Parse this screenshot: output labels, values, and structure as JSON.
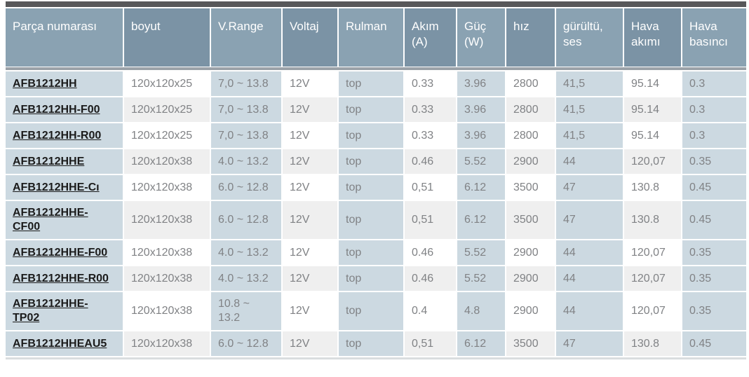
{
  "table": {
    "columns": [
      {
        "key": "part",
        "label": "Parça numarası"
      },
      {
        "key": "size",
        "label": "boyut"
      },
      {
        "key": "vrange",
        "label": "V.Range"
      },
      {
        "key": "voltage",
        "label": "Voltaj"
      },
      {
        "key": "bearing",
        "label": "Rulman"
      },
      {
        "key": "current",
        "label": "Akım (A)"
      },
      {
        "key": "power",
        "label": "Güç (W)"
      },
      {
        "key": "speed",
        "label": "hız"
      },
      {
        "key": "noise",
        "label": "gürültü, ses"
      },
      {
        "key": "airflow",
        "label": "Hava akımı"
      },
      {
        "key": "pressure",
        "label": "Hava basıncı"
      }
    ],
    "rows": [
      {
        "part": "AFB1212HH",
        "size": "120x120x25",
        "vrange": "7,0 ~ 13.8",
        "voltage": "12V",
        "bearing": "top",
        "current": "0.33",
        "power": "3.96",
        "speed": "2800",
        "noise": "41,5",
        "airflow": "95.14",
        "pressure": "0.3"
      },
      {
        "part": "AFB1212HH-F00",
        "size": "120x120x25",
        "vrange": "7,0 ~ 13.8",
        "voltage": "12V",
        "bearing": "top",
        "current": "0.33",
        "power": "3.96",
        "speed": "2800",
        "noise": "41,5",
        "airflow": "95.14",
        "pressure": "0.3"
      },
      {
        "part": "AFB1212HH-R00",
        "size": "120x120x25",
        "vrange": "7,0 ~ 13.8",
        "voltage": "12V",
        "bearing": "top",
        "current": "0.33",
        "power": "3.96",
        "speed": "2800",
        "noise": "41,5",
        "airflow": "95.14",
        "pressure": "0.3"
      },
      {
        "part": "AFB1212HHE",
        "size": "120x120x38",
        "vrange": "4.0 ~ 13.2",
        "voltage": "12V",
        "bearing": "top",
        "current": "0.46",
        "power": "5.52",
        "speed": "2900",
        "noise": "44",
        "airflow": "120,07",
        "pressure": "0.35"
      },
      {
        "part": "AFB1212HHE-Cı",
        "size": "120x120x38",
        "vrange": "6.0 ~ 12.8",
        "voltage": "12V",
        "bearing": "top",
        "current": "0,51",
        "power": "6.12",
        "speed": "3500",
        "noise": "47",
        "airflow": "130.8",
        "pressure": "0.45"
      },
      {
        "part": "AFB1212HHE-CF00",
        "size": "120x120x38",
        "vrange": "6.0 ~ 12.8",
        "voltage": "12V",
        "bearing": "top",
        "current": "0,51",
        "power": "6.12",
        "speed": "3500",
        "noise": "47",
        "airflow": "130.8",
        "pressure": "0.45"
      },
      {
        "part": "AFB1212HHE-F00",
        "size": "120x120x38",
        "vrange": "4.0 ~ 13.2",
        "voltage": "12V",
        "bearing": "top",
        "current": "0.46",
        "power": "5.52",
        "speed": "2900",
        "noise": "44",
        "airflow": "120,07",
        "pressure": "0.35"
      },
      {
        "part": "AFB1212HHE-R00",
        "size": "120x120x38",
        "vrange": "4.0 ~ 13.2",
        "voltage": "12V",
        "bearing": "top",
        "current": "0.46",
        "power": "5.52",
        "speed": "2900",
        "noise": "44",
        "airflow": "120,07",
        "pressure": "0.35"
      },
      {
        "part": "AFB1212HHE-TP02",
        "size": "120x120x38",
        "vrange": "10.8 ~ 13.2",
        "voltage": "12V",
        "bearing": "top",
        "current": "0.4",
        "power": "4.8",
        "speed": "2900",
        "noise": "44",
        "airflow": "120,07",
        "pressure": "0.35"
      },
      {
        "part": "AFB1212HHEAU5",
        "size": "120x120x38",
        "vrange": "6.0 ~ 12.8",
        "voltage": "12V",
        "bearing": "top",
        "current": "0,51",
        "power": "6.12",
        "speed": "3500",
        "noise": "47",
        "airflow": "130.8",
        "pressure": "0.45"
      }
    ],
    "colors": {
      "top_bar": "#58585a",
      "header_light": "#8aa2b2",
      "header_dark": "#7b93a5",
      "header_divider": "#9ba2a8",
      "cell_blue": "#ccd9e1",
      "cell_white": "#ffffff",
      "cell_alt": "#efefef",
      "body_text": "#808285",
      "link_text": "#1b1b1b",
      "bottom_bar": "#dadddf"
    }
  }
}
